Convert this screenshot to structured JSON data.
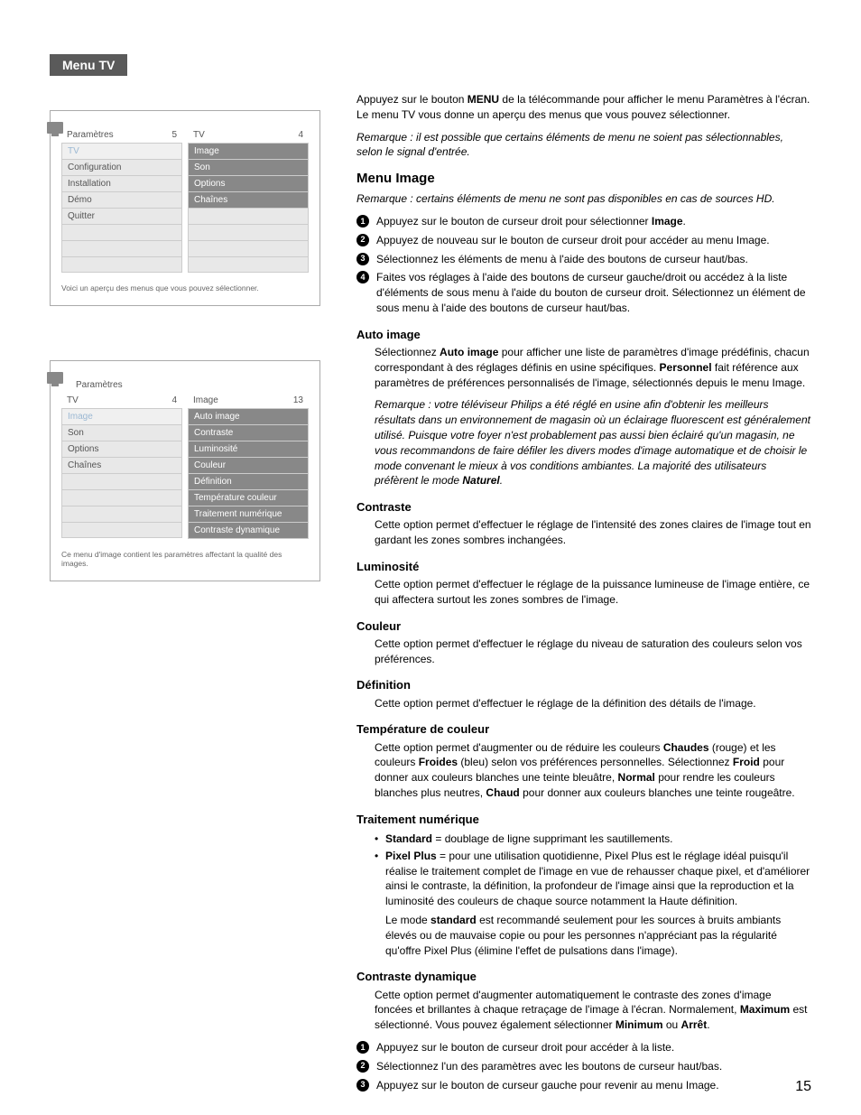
{
  "section_tab": "Menu TV",
  "page_number": "15",
  "menu_box_1": {
    "left_header": "Paramètres",
    "left_num": "5",
    "left_items": [
      "TV",
      "Configuration",
      "Installation",
      "Démo",
      "Quitter",
      "",
      "",
      ""
    ],
    "right_header": "TV",
    "right_num": "4",
    "right_items": [
      "Image",
      "Son",
      "Options",
      "Chaînes",
      "",
      "",
      "",
      ""
    ],
    "caption": "Voici un aperçu des menus que vous pouvez sélectionner."
  },
  "menu_box_2": {
    "left_header": "Paramètres",
    "left_num": "",
    "left_sub_header": "TV",
    "left_sub_num": "4",
    "left_items": [
      "Image",
      "Son",
      "Options",
      "Chaînes",
      "",
      "",
      "",
      ""
    ],
    "right_header": "Image",
    "right_num": "13",
    "right_items": [
      "Auto image",
      "Contraste",
      "Luminosité",
      "Couleur",
      "Définition",
      "Température couleur",
      "Traitement numérique",
      "Contraste dynamique"
    ],
    "caption": "Ce menu d'image contient les paramètres affectant la qualité des images."
  },
  "intro": {
    "p1_a": "Appuyez sur le bouton ",
    "p1_b": "MENU",
    "p1_c": " de la télécommande pour afficher le menu Paramètres à l'écran. Le menu TV vous donne un aperçu des menus que vous pouvez sélectionner.",
    "p2": "Remarque : il est possible que certains éléments de menu ne soient pas sélectionnables, selon le signal d'entrée."
  },
  "menu_image": {
    "title": "Menu Image",
    "note": "Remarque : certains éléments de menu ne sont pas disponibles en cas de sources HD.",
    "steps": [
      "Appuyez sur le bouton de curseur droit pour sélectionner |Image|.",
      "Appuyez de nouveau sur le bouton de curseur droit pour accéder au menu Image.",
      "Sélectionnez les éléments de menu à l'aide des boutons de curseur haut/bas.",
      "Faites vos réglages à l'aide des boutons de curseur gauche/droit ou accédez à la liste d'éléments de sous menu à l'aide du bouton de curseur droit. Sélectionnez un élément de sous menu à l'aide des boutons de curseur haut/bas."
    ]
  },
  "auto_image": {
    "title": "Auto image",
    "p1_a": "Sélectionnez ",
    "p1_b": "Auto image",
    "p1_c": " pour afficher une liste de paramètres d'image prédéfinis, chacun correspondant à des réglages définis en usine spécifiques. ",
    "p1_d": "Personnel",
    "p1_e": " fait référence aux paramètres de préférences personnalisés de l'image, sélectionnés depuis le menu Image.",
    "p2_a": "Remarque : votre téléviseur Philips a été réglé en usine afin d'obtenir les meilleurs résultats dans un environnement de magasin où un éclairage fluorescent est généralement utilisé. Puisque votre foyer n'est probablement pas aussi bien éclairé qu'un magasin, ne vous recommandons de faire défiler les divers modes d'image automatique et de choisir le mode convenant le mieux à vos conditions ambiantes. La majorité des utilisateurs préfèrent le mode ",
    "p2_b": "Naturel",
    "p2_c": "."
  },
  "contraste": {
    "title": "Contraste",
    "p": "Cette option permet d'effectuer le réglage de l'intensité des zones claires de l'image tout en gardant les zones sombres inchangées."
  },
  "luminosite": {
    "title": "Luminosité",
    "p": "Cette option permet d'effectuer le réglage de la puissance lumineuse de l'image entière, ce qui affectera surtout les zones sombres de l'image."
  },
  "couleur": {
    "title": "Couleur",
    "p": "Cette option permet d'effectuer le réglage du niveau de saturation des couleurs selon vos préférences."
  },
  "definition": {
    "title": "Définition",
    "p": "Cette option permet d'effectuer le réglage de la définition des détails de l'image."
  },
  "temperature": {
    "title": "Température de couleur",
    "p_a": "Cette option permet d'augmenter ou de réduire les couleurs ",
    "p_b": "Chaudes",
    "p_c": " (rouge) et les couleurs ",
    "p_d": "Froides",
    "p_e": " (bleu) selon vos préférences personnelles. Sélectionnez ",
    "p_f": "Froid",
    "p_g": " pour donner aux couleurs blanches une teinte bleuâtre, ",
    "p_h": "Normal",
    "p_i": " pour rendre les couleurs blanches plus neutres, ",
    "p_j": "Chaud",
    "p_k": " pour donner aux couleurs blanches une teinte rougeâtre."
  },
  "traitement": {
    "title": "Traitement numérique",
    "b1_a": "Standard",
    "b1_b": " = doublage de ligne supprimant les sautillements.",
    "b2_a": "Pixel Plus",
    "b2_b": " = pour une utilisation quotidienne, Pixel Plus est le réglage idéal puisqu'il réalise le traitement complet de l'image en vue de rehausser chaque pixel, et d'améliorer ainsi le contraste, la définition, la profondeur de l'image ainsi que la reproduction et la luminosité des couleurs de chaque source notamment la Haute définition.",
    "p2_a": "Le mode ",
    "p2_b": "standard",
    "p2_c": " est recommandé seulement pour les sources à bruits ambiants élevés ou de mauvaise copie ou pour les personnes n'appréciant pas la régularité qu'offre Pixel Plus (élimine l'effet de pulsations dans l'image)."
  },
  "contraste_dyn": {
    "title": "Contraste dynamique",
    "p_a": "Cette option permet d'augmenter automatiquement le contraste des zones d'image foncées et brillantes à chaque retraçage de l'image à l'écran. Normalement, ",
    "p_b": "Maximum",
    "p_c": " est sélectionné. Vous pouvez également sélectionner ",
    "p_d": "Minimum",
    "p_e": " ou ",
    "p_f": "Arrêt",
    "p_g": ".",
    "steps": [
      "Appuyez sur le bouton de curseur droit pour accéder à la liste.",
      "Sélectionnez l'un des paramètres avec les boutons de curseur haut/bas.",
      "Appuyez sur le bouton de curseur gauche pour revenir au menu Image."
    ]
  }
}
